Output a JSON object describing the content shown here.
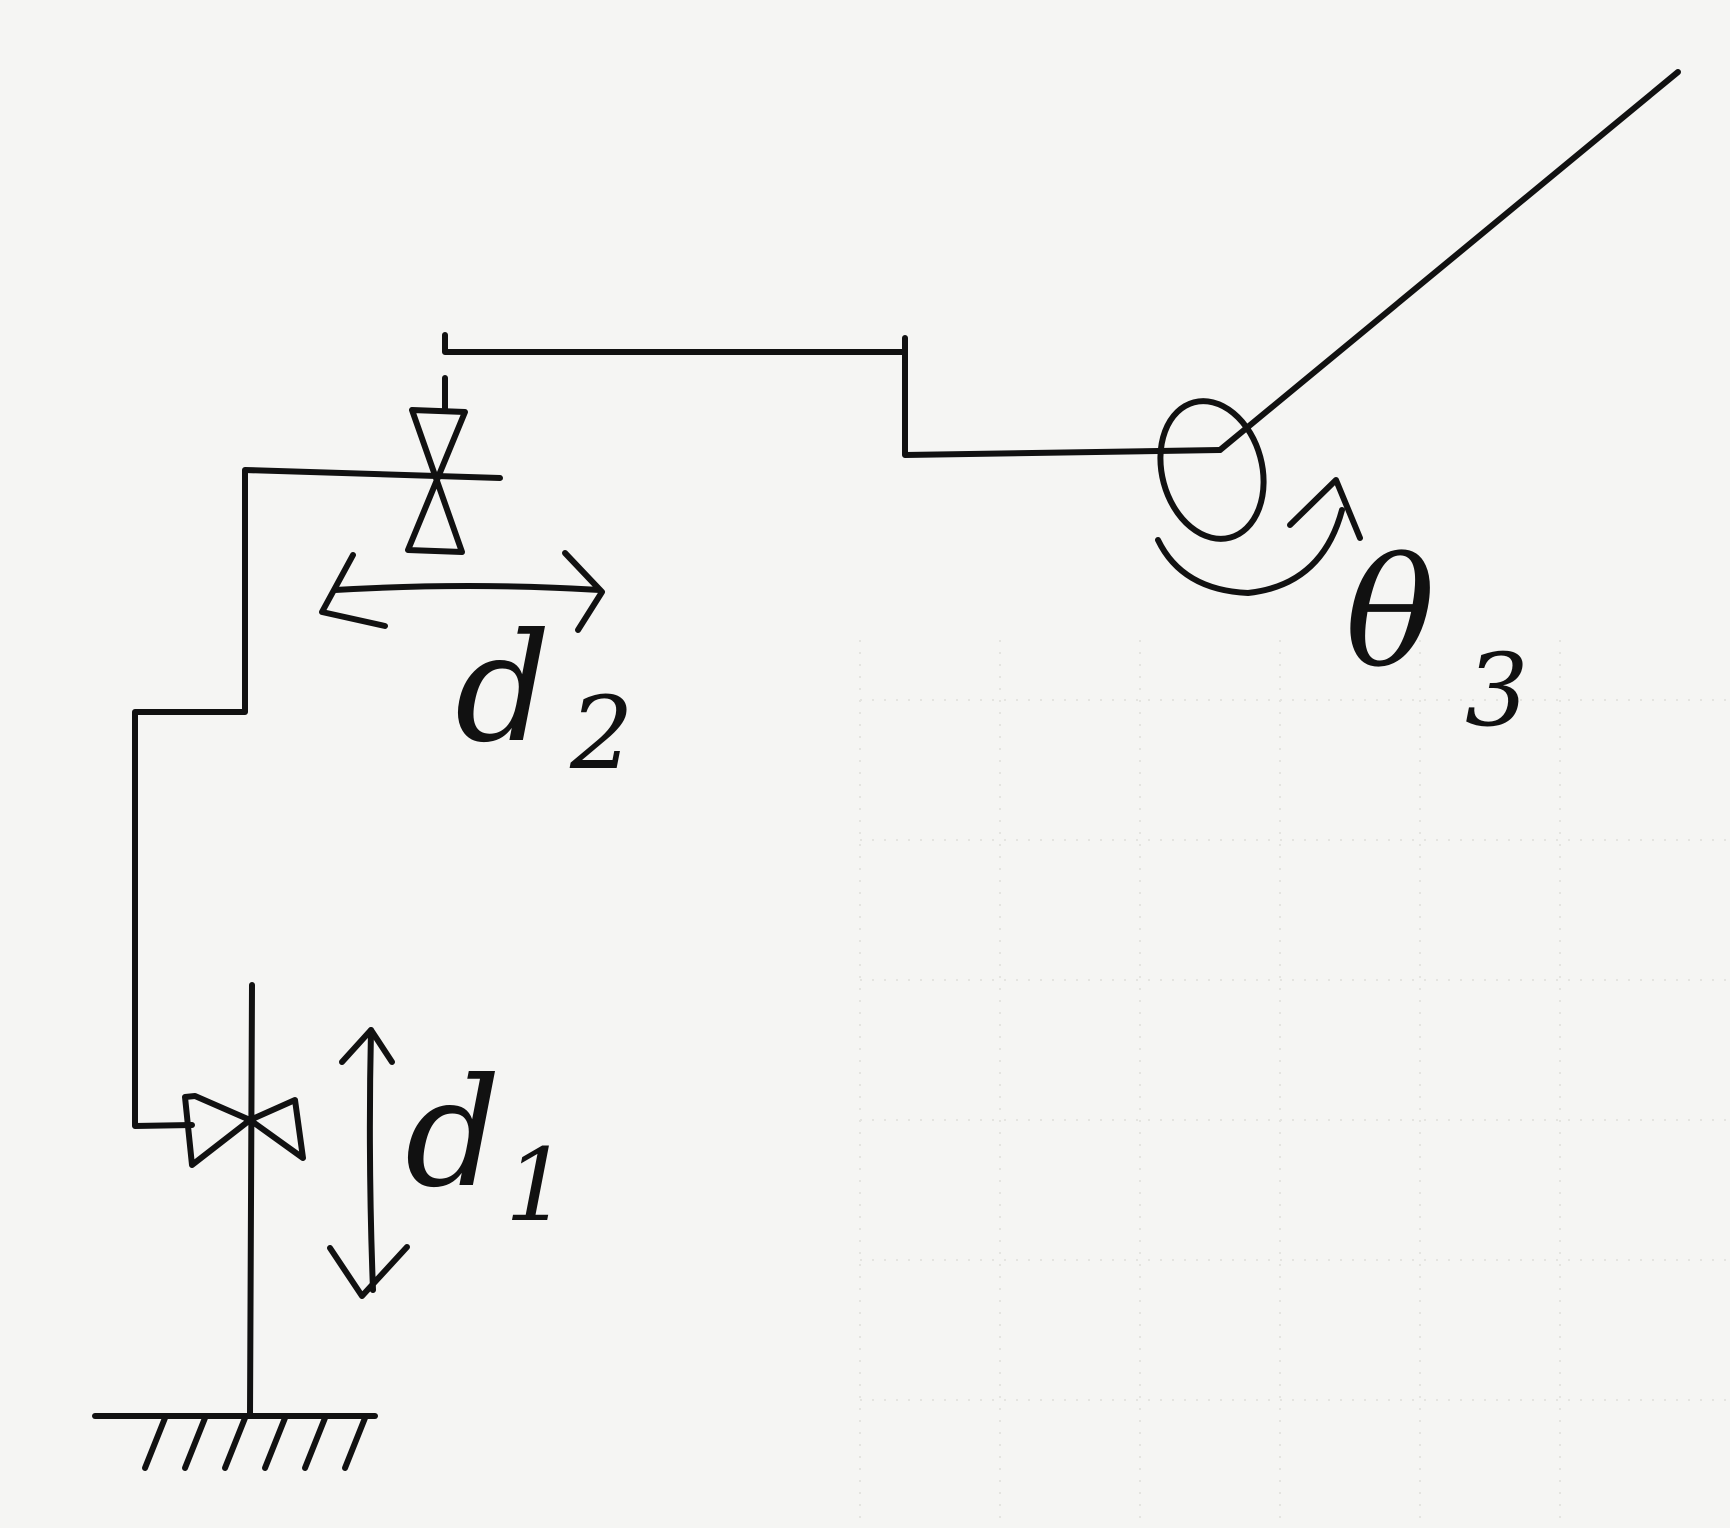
{
  "labels": {
    "d1": {
      "main": "d",
      "sub": "1"
    },
    "d2": {
      "main": "d",
      "sub": "2"
    },
    "theta3": {
      "main": "θ",
      "sub": "3"
    }
  }
}
